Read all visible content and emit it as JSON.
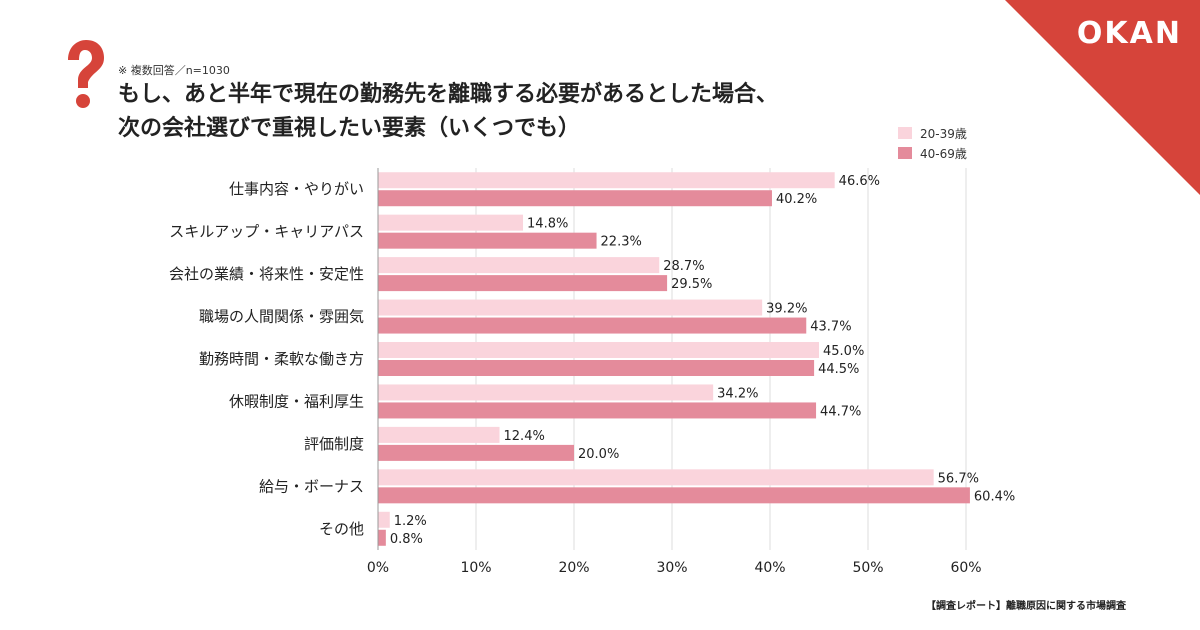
{
  "brand": {
    "logo": "OKAN",
    "accent_color": "#d6443a"
  },
  "header": {
    "note": "※ 複数回答／n=1030",
    "title_line1": "もし、あと半年で現在の勤務先を離職する必要があるとした場合、",
    "title_line2": "次の会社選びで重視したい要素（いくつでも）"
  },
  "footer": {
    "source": "【調査レポート】離職原因に関する市場調査"
  },
  "chart_data": {
    "type": "bar",
    "orientation": "horizontal",
    "categories": [
      "仕事内容・やりがい",
      "スキルアップ・キャリアパス",
      "会社の業績・将来性・安定性",
      "職場の人間関係・雰囲気",
      "勤務時間・柔軟な働き方",
      "休暇制度・福利厚生",
      "評価制度",
      "給与・ボーナス",
      "その他"
    ],
    "series": [
      {
        "name": "20-39歳",
        "color": "#fad4dc",
        "values": [
          46.6,
          14.8,
          28.7,
          39.2,
          45.0,
          34.2,
          12.4,
          56.7,
          1.2
        ],
        "labels": [
          "46.6%",
          "14.8%",
          "28.7%",
          "39.2%",
          "45.0%",
          "34.2%",
          "12.4%",
          "56.7%",
          "1.2%"
        ]
      },
      {
        "name": "40-69歳",
        "color": "#e48b9b",
        "values": [
          40.2,
          22.3,
          29.5,
          43.7,
          44.5,
          44.7,
          20.0,
          60.4,
          0.8
        ],
        "labels": [
          "40.2%",
          "22.3%",
          "29.5%",
          "43.7%",
          "44.5%",
          "44.7%",
          "20.0%",
          "60.4%",
          "0.8%"
        ]
      }
    ],
    "xlim": [
      0,
      60
    ],
    "xticks": [
      "0%",
      "10%",
      "20%",
      "30%",
      "40%",
      "50%",
      "60%"
    ],
    "grid": true,
    "legend_position": "top-right"
  }
}
